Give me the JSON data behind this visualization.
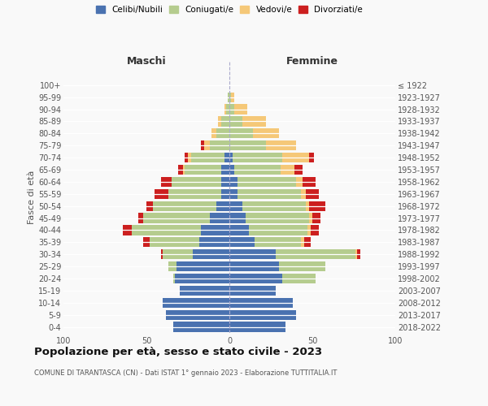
{
  "age_groups": [
    "0-4",
    "5-9",
    "10-14",
    "15-19",
    "20-24",
    "25-29",
    "30-34",
    "35-39",
    "40-44",
    "45-49",
    "50-54",
    "55-59",
    "60-64",
    "65-69",
    "70-74",
    "75-79",
    "80-84",
    "85-89",
    "90-94",
    "95-99",
    "100+"
  ],
  "birth_years": [
    "2018-2022",
    "2013-2017",
    "2008-2012",
    "2003-2007",
    "1998-2002",
    "1993-1997",
    "1988-1992",
    "1983-1987",
    "1978-1982",
    "1973-1977",
    "1968-1972",
    "1963-1967",
    "1958-1962",
    "1953-1957",
    "1948-1952",
    "1943-1947",
    "1938-1942",
    "1933-1937",
    "1928-1932",
    "1923-1927",
    "≤ 1922"
  ],
  "maschi": {
    "celibi": [
      34,
      38,
      40,
      30,
      33,
      32,
      22,
      18,
      17,
      12,
      8,
      5,
      5,
      5,
      3,
      0,
      0,
      0,
      0,
      0,
      0
    ],
    "coniugati": [
      0,
      0,
      0,
      0,
      1,
      5,
      18,
      30,
      42,
      40,
      38,
      32,
      30,
      22,
      20,
      12,
      8,
      5,
      2,
      1,
      0
    ],
    "vedovi": [
      0,
      0,
      0,
      0,
      0,
      0,
      0,
      0,
      0,
      0,
      0,
      0,
      0,
      1,
      2,
      3,
      3,
      2,
      1,
      0,
      0
    ],
    "divorziati": [
      0,
      0,
      0,
      0,
      0,
      0,
      1,
      4,
      5,
      3,
      4,
      8,
      6,
      3,
      2,
      2,
      0,
      0,
      0,
      0,
      0
    ]
  },
  "femmine": {
    "nubili": [
      34,
      40,
      38,
      28,
      32,
      30,
      28,
      15,
      12,
      10,
      8,
      5,
      5,
      3,
      2,
      0,
      0,
      0,
      0,
      0,
      0
    ],
    "coniugate": [
      0,
      0,
      0,
      0,
      20,
      28,
      48,
      28,
      35,
      38,
      38,
      38,
      35,
      28,
      30,
      22,
      14,
      8,
      3,
      1,
      0
    ],
    "vedove": [
      0,
      0,
      0,
      0,
      0,
      0,
      1,
      2,
      2,
      2,
      2,
      3,
      4,
      8,
      16,
      18,
      16,
      14,
      8,
      2,
      0
    ],
    "divorziate": [
      0,
      0,
      0,
      0,
      0,
      0,
      2,
      4,
      5,
      5,
      10,
      8,
      8,
      5,
      3,
      0,
      0,
      0,
      0,
      0,
      0
    ]
  },
  "colors": {
    "celibi": "#4a72b0",
    "coniugati": "#b5cc8e",
    "vedovi": "#f5c878",
    "divorziati": "#cc1f1f"
  },
  "xlim": 100,
  "title": "Popolazione per età, sesso e stato civile - 2023",
  "subtitle": "COMUNE DI TARANTASCA (CN) - Dati ISTAT 1° gennaio 2023 - Elaborazione TUTTITALIA.IT",
  "ylabel_left": "Fasce di età",
  "xlabel_maschi": "Maschi",
  "xlabel_femmine": "Femmine",
  "bg_color": "#f9f9f9",
  "legend": [
    "Celibi/Nubili",
    "Coniugati/e",
    "Vedovi/e",
    "Divorziati/e"
  ]
}
